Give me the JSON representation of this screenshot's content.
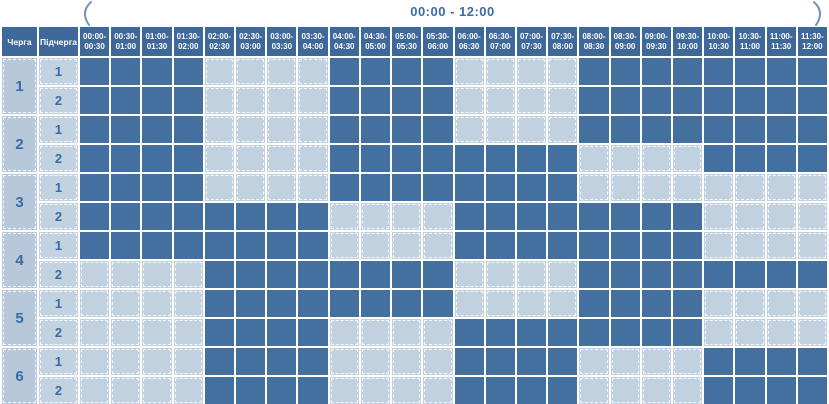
{
  "annotation": {
    "title": "00:00 - 12:00"
  },
  "table": {
    "queue_header": "Черга",
    "subqueue_header": "Підчерга",
    "time_slots": [
      "00:00-\n00:30",
      "00:30-\n01:00",
      "01:00-\n01:30",
      "01:30-\n02:00",
      "02:00-\n02:30",
      "02:30-\n03:00",
      "03:00-\n03:30",
      "03:30-\n04:00",
      "04:00-\n04:30",
      "04:30-\n05:00",
      "05:00-\n05:30",
      "05:30-\n06:00",
      "06:00-\n06:30",
      "06:30-\n07:00",
      "07:00-\n07:30",
      "07:30-\n08:00",
      "08:00-\n08:30",
      "08:30-\n09:00",
      "09:00-\n09:30",
      "09:30-\n10:00",
      "10:00-\n10:30",
      "10:30-\n11:00",
      "11:00-\n11:30",
      "11:30-\n12:00"
    ],
    "queues": [
      {
        "number": "1",
        "subqueues": [
          {
            "number": "1",
            "cells": [
              1,
              1,
              1,
              1,
              0,
              0,
              0,
              0,
              1,
              1,
              1,
              1,
              0,
              0,
              0,
              0,
              1,
              1,
              1,
              1,
              1,
              1,
              1,
              1
            ]
          },
          {
            "number": "2",
            "cells": [
              1,
              1,
              1,
              1,
              0,
              0,
              0,
              0,
              1,
              1,
              1,
              1,
              0,
              0,
              0,
              0,
              1,
              1,
              1,
              1,
              1,
              1,
              1,
              1
            ]
          }
        ]
      },
      {
        "number": "2",
        "subqueues": [
          {
            "number": "1",
            "cells": [
              1,
              1,
              1,
              1,
              0,
              0,
              0,
              0,
              1,
              1,
              1,
              1,
              0,
              0,
              0,
              0,
              1,
              1,
              1,
              1,
              1,
              1,
              1,
              1
            ]
          },
          {
            "number": "2",
            "cells": [
              1,
              1,
              1,
              1,
              0,
              0,
              0,
              0,
              1,
              1,
              1,
              1,
              1,
              1,
              1,
              1,
              0,
              0,
              0,
              0,
              1,
              1,
              1,
              1
            ]
          }
        ]
      },
      {
        "number": "3",
        "subqueues": [
          {
            "number": "1",
            "cells": [
              1,
              1,
              1,
              1,
              0,
              0,
              0,
              0,
              1,
              1,
              1,
              1,
              1,
              1,
              1,
              1,
              0,
              0,
              0,
              0,
              0,
              0,
              0,
              0
            ]
          },
          {
            "number": "2",
            "cells": [
              1,
              1,
              1,
              1,
              1,
              1,
              1,
              1,
              0,
              0,
              0,
              0,
              1,
              1,
              1,
              1,
              1,
              1,
              1,
              1,
              0,
              0,
              0,
              0
            ]
          }
        ]
      },
      {
        "number": "4",
        "subqueues": [
          {
            "number": "1",
            "cells": [
              1,
              1,
              1,
              1,
              1,
              1,
              1,
              1,
              0,
              0,
              0,
              0,
              1,
              1,
              1,
              1,
              1,
              1,
              1,
              1,
              0,
              0,
              0,
              0
            ]
          },
          {
            "number": "2",
            "cells": [
              0,
              0,
              0,
              0,
              1,
              1,
              1,
              1,
              1,
              1,
              1,
              1,
              0,
              0,
              0,
              0,
              1,
              1,
              1,
              1,
              1,
              1,
              1,
              1
            ]
          }
        ]
      },
      {
        "number": "5",
        "subqueues": [
          {
            "number": "1",
            "cells": [
              0,
              0,
              0,
              0,
              1,
              1,
              1,
              1,
              1,
              1,
              1,
              1,
              0,
              0,
              0,
              0,
              1,
              1,
              1,
              1,
              0,
              0,
              0,
              0
            ]
          },
          {
            "number": "2",
            "cells": [
              0,
              0,
              0,
              0,
              1,
              1,
              1,
              1,
              0,
              0,
              0,
              0,
              1,
              1,
              1,
              1,
              1,
              1,
              1,
              1,
              0,
              0,
              0,
              0
            ]
          }
        ]
      },
      {
        "number": "6",
        "subqueues": [
          {
            "number": "1",
            "cells": [
              0,
              0,
              0,
              0,
              1,
              1,
              1,
              1,
              0,
              0,
              0,
              0,
              1,
              1,
              1,
              1,
              0,
              0,
              0,
              0,
              1,
              1,
              1,
              1
            ]
          },
          {
            "number": "2",
            "cells": [
              0,
              0,
              0,
              0,
              1,
              1,
              1,
              1,
              0,
              0,
              0,
              0,
              1,
              1,
              1,
              1,
              0,
              0,
              0,
              0,
              1,
              1,
              1,
              1
            ]
          }
        ]
      }
    ]
  },
  "colors": {
    "header_bg": "#3e689a",
    "dark_cell": "#44709f",
    "light_cell": "#c2d1e0",
    "queue_col_bg": "#b6c8d9",
    "subqueue_col_bg": "#c3d2e1",
    "accent": "#3a6ba3"
  }
}
